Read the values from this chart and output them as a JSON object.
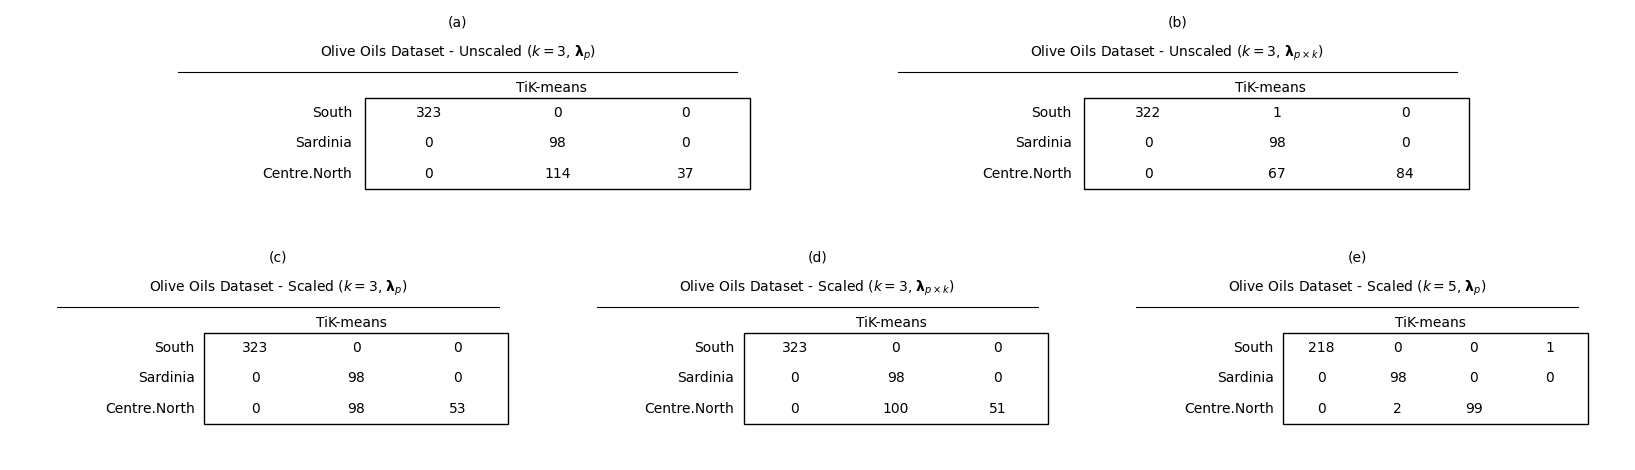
{
  "panels": [
    {
      "label": "(a)",
      "title": "Olive Oils Dataset - Unscaled ($k = 3$, $\\boldsymbol{\\lambda}_p$)",
      "header": "TiK-means",
      "rows": [
        "South",
        "Sardinia",
        "Centre.North"
      ],
      "matrix": [
        [
          "323",
          "0",
          "0"
        ],
        [
          "0",
          "98",
          "0"
        ],
        [
          "0",
          "114",
          "37"
        ]
      ]
    },
    {
      "label": "(b)",
      "title": "Olive Oils Dataset - Unscaled ($k = 3$, $\\boldsymbol{\\lambda}_{p\\times k}$)",
      "header": "TiK-means",
      "rows": [
        "South",
        "Sardinia",
        "Centre.North"
      ],
      "matrix": [
        [
          "322",
          "1",
          "0"
        ],
        [
          "0",
          "98",
          "0"
        ],
        [
          "0",
          "67",
          "84"
        ]
      ]
    },
    {
      "label": "(c)",
      "title": "Olive Oils Dataset - Scaled ($k = 3$, $\\boldsymbol{\\lambda}_p$)",
      "header": "TiK-means",
      "rows": [
        "South",
        "Sardinia",
        "Centre.North"
      ],
      "matrix": [
        [
          "323",
          "0",
          "0"
        ],
        [
          "0",
          "98",
          "0"
        ],
        [
          "0",
          "98",
          "53"
        ]
      ]
    },
    {
      "label": "(d)",
      "title": "Olive Oils Dataset - Scaled ($k = 3$, $\\boldsymbol{\\lambda}_{p\\times k}$)",
      "header": "TiK-means",
      "rows": [
        "South",
        "Sardinia",
        "Centre.North"
      ],
      "matrix": [
        [
          "323",
          "0",
          "0"
        ],
        [
          "0",
          "98",
          "0"
        ],
        [
          "0",
          "100",
          "51"
        ]
      ]
    },
    {
      "label": "(e)",
      "title": "Olive Oils Dataset - Scaled ($k = 5$, $\\boldsymbol{\\lambda}_p$)",
      "header": "TiK-means",
      "rows": [
        "South",
        "Sardinia",
        "Centre.North"
      ],
      "matrix": [
        [
          "218",
          "0",
          "0",
          "1"
        ],
        [
          "0",
          "98",
          "0",
          "0"
        ],
        [
          "0",
          "2",
          "99",
          ""
        ]
      ]
    }
  ],
  "bg_color": "#ffffff",
  "text_color": "#000000",
  "font_size": 10,
  "title_font_size": 10
}
